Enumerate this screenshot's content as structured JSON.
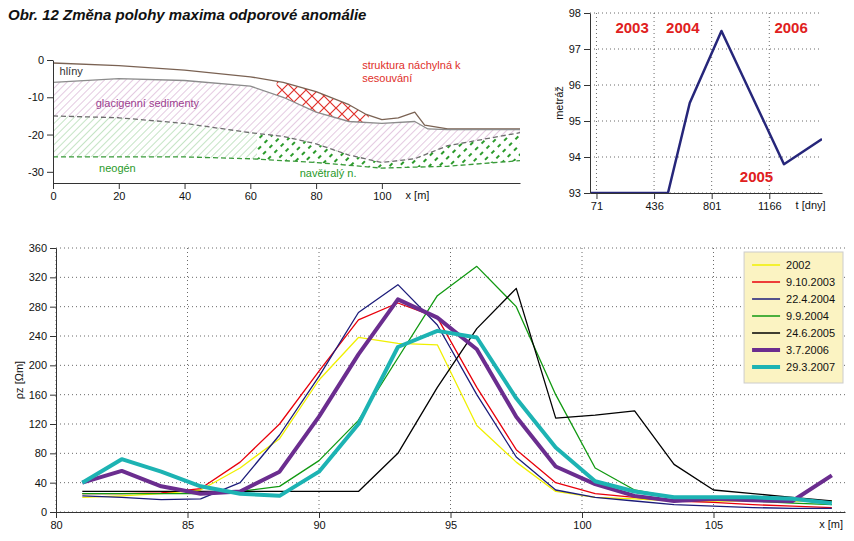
{
  "title": "Obr. 12 Změna polohy maxima odporové anomálie",
  "chart_data": [
    {
      "type": "line",
      "xlabel": "x [m]",
      "xlim": [
        0,
        142
      ],
      "xticks": [
        0,
        20,
        40,
        60,
        80,
        100
      ],
      "ylim": [
        -33,
        0
      ],
      "yticks": [
        0,
        -10,
        -20,
        -30
      ],
      "grid": false,
      "series": [
        {
          "color": "#7a6253",
          "line_style": "solid",
          "x": [
            0,
            20,
            40,
            60,
            70,
            80,
            90,
            95,
            100,
            105,
            110,
            113,
            120,
            142
          ],
          "values": [
            -0.8,
            -1.5,
            -2.7,
            -4.5,
            -6,
            -8.5,
            -12,
            -14.5,
            -16,
            -15.5,
            -14,
            -17.5,
            -18.5,
            -18.5
          ]
        },
        {
          "color": "#8c8c8c",
          "line_style": "solid",
          "x": [
            0,
            20,
            40,
            60,
            70,
            80,
            90,
            100,
            110,
            114,
            120,
            142
          ],
          "values": [
            -6,
            -5,
            -5.5,
            -7,
            -10,
            -14,
            -16.5,
            -17,
            -16.5,
            -18.5,
            -18.7,
            -18.7
          ]
        },
        {
          "color": "#6e6e6e",
          "line_style": "dashed",
          "x": [
            0,
            20,
            40,
            60,
            70,
            80,
            90,
            100,
            110,
            120,
            142
          ],
          "values": [
            -15,
            -15.5,
            -17,
            -19.5,
            -20.5,
            -22.5,
            -25.5,
            -27.5,
            -26.5,
            -23,
            -19.5
          ]
        },
        {
          "color": "#3a9a3a",
          "line_style": "dashed",
          "x": [
            0,
            40,
            60,
            80,
            100,
            120,
            142
          ],
          "values": [
            -26,
            -26,
            -26.5,
            -27.5,
            -29,
            -28.5,
            -27
          ]
        }
      ],
      "annotations": [
        {
          "text": "hlíny",
          "x": 2,
          "y": -4,
          "color": "#333333"
        },
        {
          "text": "glacigenní sedimenty",
          "x": 13,
          "y": -12.5,
          "color": "#9c3d8f"
        },
        {
          "text": "neogén",
          "x": 14,
          "y": -30,
          "color": "#2a9a2a",
          "range": [
            0,
            62
          ]
        },
        {
          "text": "navětralý n.",
          "x": 75,
          "y": -31.5,
          "color": "#2a9a2a",
          "range": [
            62,
            142
          ]
        },
        {
          "text": "struktura náchylná k sesouvání",
          "x": 94,
          "y": -2.5,
          "color": "#e0302a",
          "range": [
            68,
            96
          ]
        }
      ]
    },
    {
      "type": "line",
      "xlabel": "t [dny]",
      "ylabel": "metráž",
      "xlim": [
        30,
        1500
      ],
      "xticks": [
        71,
        436,
        801,
        1166
      ],
      "ylim": [
        93,
        98
      ],
      "yticks": [
        93,
        94,
        95,
        96,
        97,
        98
      ],
      "grid": true,
      "x": [
        30,
        524,
        662,
        863,
        1259,
        1500
      ],
      "series": [
        {
          "color": "#26267a",
          "line_style": "solid",
          "values": [
            93,
            93,
            95.5,
            97.5,
            93.8,
            94.5
          ]
        }
      ],
      "annotations": [
        {
          "text": "2003",
          "x": 297,
          "y": 97.45,
          "color": "#e02020"
        },
        {
          "text": "2004",
          "x": 618,
          "y": 97.45,
          "color": "#e02020"
        },
        {
          "text": "2006",
          "x": 1304,
          "y": 97.45,
          "color": "#e02020"
        },
        {
          "text": "2005",
          "x": 1085,
          "y": 93.3,
          "color": "#e02020"
        }
      ]
    },
    {
      "type": "line",
      "xlabel": "x [m]",
      "ylabel": "ρz [Ωm]",
      "xlim": [
        80,
        110
      ],
      "xticks": [
        80,
        85,
        90,
        95,
        100,
        105
      ],
      "ylim": [
        0,
        360
      ],
      "yticks": [
        0,
        40,
        80,
        120,
        160,
        200,
        240,
        280,
        320,
        360
      ],
      "grid": true,
      "legend": "upper right",
      "x": [
        81,
        82.5,
        84,
        85.5,
        87,
        88.5,
        90,
        91.5,
        93,
        94.5,
        96,
        97.5,
        99,
        100.5,
        102,
        103.5,
        105,
        106.5,
        108,
        109.5
      ],
      "series": [
        {
          "name": "2002",
          "color": "#f0f000",
          "line_style": "solid",
          "values": [
            20,
            22,
            25,
            30,
            60,
            100,
            180,
            238,
            230,
            228,
            118,
            68,
            28,
            20,
            18,
            15,
            15,
            15,
            15,
            15
          ]
        },
        {
          "name": "9.10.2003",
          "color": "#e8000b",
          "line_style": "solid",
          "values": [
            25,
            25,
            26,
            32,
            68,
            120,
            192,
            262,
            285,
            265,
            170,
            85,
            40,
            25,
            20,
            15,
            13,
            10,
            8,
            6
          ]
        },
        {
          "name": "22.4.2004",
          "color": "#1c1c7a",
          "line_style": "solid",
          "values": [
            22,
            20,
            17,
            18,
            40,
            105,
            185,
            272,
            310,
            255,
            160,
            75,
            30,
            20,
            15,
            10,
            8,
            6,
            5,
            5
          ]
        },
        {
          "name": "9.9.2004",
          "color": "#119911",
          "line_style": "solid",
          "values": [
            25,
            25,
            25,
            25,
            28,
            35,
            70,
            125,
            210,
            295,
            335,
            280,
            160,
            60,
            30,
            20,
            18,
            15,
            12,
            10
          ]
        },
        {
          "name": "24.6.2005",
          "color": "#000000",
          "line_style": "solid",
          "values": [
            28,
            28,
            28,
            28,
            28,
            28,
            28,
            28,
            80,
            170,
            250,
            305,
            128,
            132,
            138,
            65,
            30,
            25,
            20,
            15
          ]
        },
        {
          "name": "3.7.2006",
          "color": "#6b2d8f",
          "line_style": "thick",
          "values": [
            40,
            56,
            35,
            25,
            28,
            55,
            130,
            215,
            290,
            265,
            222,
            130,
            62,
            38,
            22,
            15,
            18,
            16,
            15,
            50
          ]
        },
        {
          "name": "29.3.2007",
          "color": "#1db3b3",
          "line_style": "thick",
          "values": [
            40,
            72,
            55,
            35,
            25,
            22,
            55,
            120,
            225,
            247,
            238,
            155,
            88,
            42,
            28,
            20,
            20,
            20,
            18,
            12
          ]
        }
      ]
    }
  ]
}
